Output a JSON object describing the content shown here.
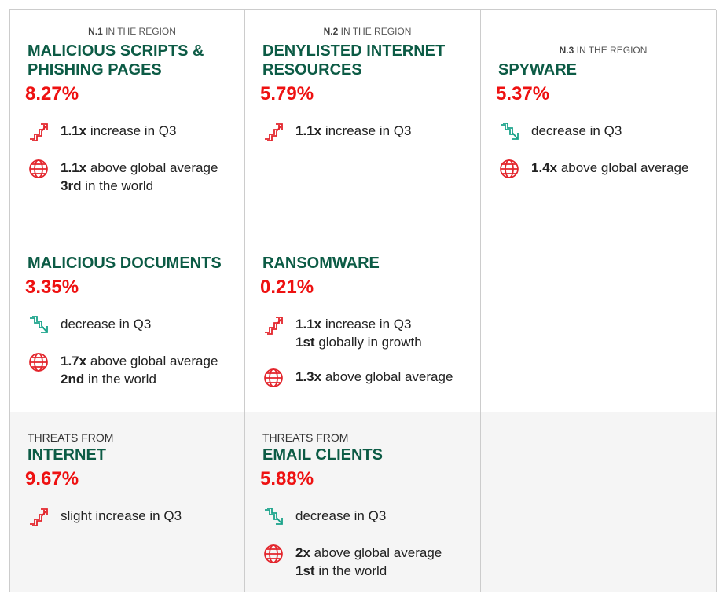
{
  "rows": [
    [
      {
        "rank": {
          "num": "N.1",
          "text": "IN THE REGION"
        },
        "title": "MALICIOUS SCRIPTS & PHISHING PAGES",
        "value": "8.27%",
        "items": [
          {
            "icon": "up",
            "lines": [
              {
                "bold": "1.1x",
                "text": "increase in Q3"
              }
            ]
          },
          {
            "icon": "globe",
            "lines": [
              {
                "bold": "1.1x",
                "text": "above global average"
              },
              {
                "bold": "3rd",
                "text": "in the world"
              }
            ]
          }
        ]
      },
      {
        "rank": {
          "num": "N.2",
          "text": "IN THE REGION"
        },
        "title": "DENYLISTED INTERNET RESOURCES",
        "value": "5.79%",
        "items": [
          {
            "icon": "up",
            "lines": [
              {
                "bold": "1.1x",
                "text": "increase in Q3"
              }
            ]
          }
        ]
      },
      {
        "rank": {
          "num": "N.3",
          "text": "IN THE REGION"
        },
        "title": "SPYWARE",
        "value": "5.37%",
        "items": [
          {
            "icon": "down",
            "lines": [
              {
                "text": "decrease in Q3"
              }
            ]
          },
          {
            "icon": "globe",
            "lines": [
              {
                "bold": "1.4x",
                "text": "above global average"
              }
            ]
          }
        ]
      }
    ],
    [
      {
        "title": "MALICIOUS DOCUMENTS",
        "value": "3.35%",
        "items": [
          {
            "icon": "down",
            "lines": [
              {
                "text": "decrease in Q3"
              }
            ]
          },
          {
            "icon": "globe",
            "lines": [
              {
                "bold": "1.7x",
                "text": "above global average"
              },
              {
                "bold": "2nd",
                "text": "in the world"
              }
            ]
          }
        ]
      },
      {
        "title": "RANSOMWARE",
        "value": "0.21%",
        "items": [
          {
            "icon": "up",
            "lines": [
              {
                "bold": "1.1x",
                "text": "increase in Q3"
              },
              {
                "bold": "1st",
                "text": "globally in growth"
              }
            ]
          },
          {
            "icon": "globe",
            "lines": [
              {
                "bold": "1.3x",
                "text": "above global average"
              }
            ]
          }
        ]
      }
    ],
    [
      {
        "kicker": "THREATS FROM",
        "title": "INTERNET",
        "value": "9.67%",
        "items": [
          {
            "icon": "up",
            "lines": [
              {
                "text": "slight increase in Q3"
              }
            ]
          }
        ]
      },
      {
        "kicker": "THREATS FROM",
        "title": "EMAIL CLIENTS",
        "value": "5.88%",
        "items": [
          {
            "icon": "down",
            "lines": [
              {
                "text": "decrease in Q3"
              }
            ]
          },
          {
            "icon": "globe",
            "lines": [
              {
                "bold": "2x",
                "text": "above global average"
              },
              {
                "bold": "1st",
                "text": "in the world"
              }
            ]
          }
        ]
      }
    ]
  ]
}
